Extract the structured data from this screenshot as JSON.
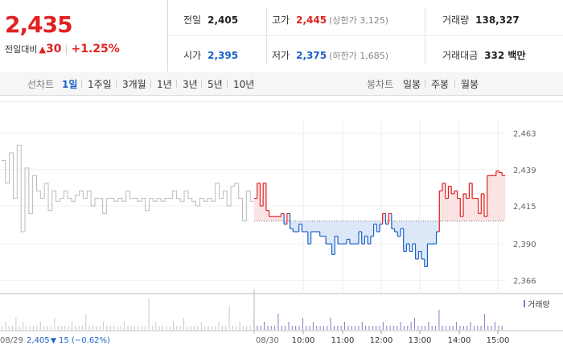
{
  "quote": {
    "price": "2,435",
    "change_label": "전일대비",
    "change_arrow": "▲",
    "change_value": "30",
    "change_pct": "+1.25%",
    "prev_close_label": "전일",
    "prev_close": "2,405",
    "open_label": "시가",
    "open": "2,395",
    "high_label": "고가",
    "high": "2,445",
    "upper_limit": "(상한가 3,125)",
    "low_label": "저가",
    "low": "2,375",
    "lower_limit": "(하한가 1,685)",
    "volume_label": "거래량",
    "volume": "138,327",
    "amount_label": "거래대금",
    "amount": "332 백만"
  },
  "tabs": {
    "line_label": "선차트",
    "line_items": [
      "1일",
      "1주일",
      "3개월",
      "1년",
      "3년",
      "5년",
      "10년"
    ],
    "candle_label": "봉차트",
    "candle_items": [
      "일봉",
      "주봉",
      "월봉"
    ]
  },
  "colors": {
    "up": "#e12121",
    "down": "#1a61c8",
    "prev": "#bbbbbb",
    "up_fill": "#fbe3e3",
    "down_fill": "#dce8f7",
    "volume": "#8a7bc4"
  },
  "chart_data": {
    "type": "line",
    "baseline": 2405,
    "ylim": [
      2363,
      2467
    ],
    "y_ticks": [
      "2,463",
      "2,439",
      "2,415",
      "2,390",
      "2,366"
    ],
    "x_ticks": [
      "10:00",
      "11:00",
      "12:00",
      "13:00",
      "14:00",
      "15:00"
    ],
    "prev_day_label": "08/29",
    "today_label": "08/30",
    "prev_day_summary": {
      "close": "2,405",
      "arrow": "▼",
      "change": "15",
      "pct": "(−0.62%)"
    },
    "volume_legend": "거래량",
    "series": [
      {
        "name": "08/29",
        "values": [
          2445,
          2430,
          2450,
          2420,
          2455,
          2398,
          2440,
          2410,
          2435,
          2425,
          2420,
          2430,
          2412,
          2425,
          2418,
          2420,
          2425,
          2420,
          2418,
          2422,
          2425,
          2420,
          2425,
          2415,
          2420,
          2420,
          2410,
          2420,
          2420,
          2418,
          2420,
          2418,
          2425,
          2420,
          2420,
          2418,
          2420,
          2412,
          2420,
          2418,
          2420,
          2418,
          2420,
          2420,
          2425,
          2420,
          2418,
          2425,
          2420,
          2418,
          2415,
          2420,
          2418,
          2420,
          2418,
          2430,
          2420,
          2425,
          2415,
          2428,
          2430,
          2420,
          2405,
          2425,
          2418
        ]
      },
      {
        "name": "08/30",
        "values": [
          2420,
          2430,
          2415,
          2430,
          2412,
          2408,
          2408,
          2408,
          2408,
          2410,
          2403,
          2410,
          2400,
          2398,
          2398,
          2403,
          2398,
          2398,
          2390,
          2398,
          2398,
          2398,
          2395,
          2395,
          2390,
          2390,
          2383,
          2395,
          2390,
          2390,
          2390,
          2393,
          2390,
          2390,
          2390,
          2398,
          2390,
          2395,
          2390,
          2395,
          2403,
          2398,
          2403,
          2410,
          2403,
          2410,
          2400,
          2398,
          2395,
          2400,
          2385,
          2390,
          2385,
          2390,
          2380,
          2385,
          2380,
          2375,
          2390,
          2390,
          2390,
          2398,
          2425,
          2430,
          2420,
          2428,
          2423,
          2425,
          2420,
          2408,
          2423,
          2420,
          2430,
          2420,
          2420,
          2410,
          2423,
          2408,
          2435,
          2435,
          2435,
          2438,
          2437,
          2435
        ]
      }
    ],
    "volume": [
      1,
      2,
      1,
      1,
      3,
      1,
      2,
      1,
      1,
      1,
      1,
      2,
      1,
      1,
      1,
      3,
      1,
      1,
      1,
      1,
      2,
      1,
      1,
      1,
      4,
      1,
      1,
      1,
      1,
      2,
      1,
      1,
      1,
      1,
      1,
      2,
      1,
      1,
      1,
      1,
      1,
      1,
      8,
      1,
      2,
      1,
      1,
      1,
      1,
      2,
      1,
      1,
      3,
      1,
      1,
      1,
      1,
      2,
      1,
      1,
      1,
      1,
      2,
      1,
      1,
      6,
      1,
      1,
      2,
      1,
      1,
      1,
      3,
      1,
      1,
      2,
      1,
      1,
      1,
      4,
      1,
      1,
      2,
      1,
      1,
      1,
      3,
      1,
      1,
      2,
      1,
      1,
      1,
      1,
      3,
      1,
      1,
      1,
      2,
      1,
      1,
      1,
      1,
      2,
      1,
      1,
      1,
      1,
      1,
      2,
      1,
      1,
      1,
      1,
      2,
      1,
      1,
      2,
      3,
      1,
      1,
      1,
      2,
      1,
      1,
      5,
      1,
      1,
      1,
      1,
      2,
      1,
      1,
      1,
      2,
      1,
      1,
      1,
      4,
      1,
      1,
      2,
      1,
      1
    ]
  }
}
